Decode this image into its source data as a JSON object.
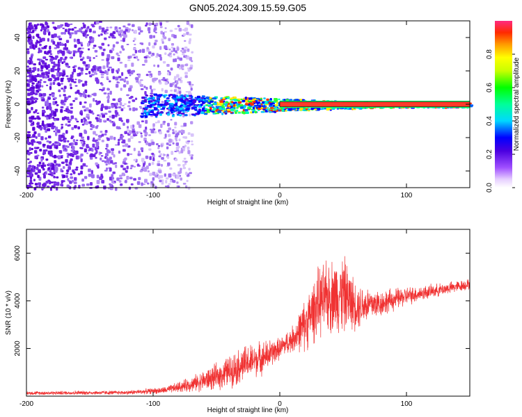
{
  "title": "GN05.2024.309.15.59.G05",
  "colors": {
    "signal": "#f03232",
    "axis": "#000000",
    "background": "#ffffff"
  },
  "chart_data": [
    {
      "type": "heatmap",
      "xlabel": "Height of straight line (km)",
      "ylabel": "Frequency (Hz)",
      "xlim": [
        -200,
        150
      ],
      "ylim": [
        -50,
        50
      ],
      "x_ticks": [
        -200,
        -100,
        0,
        100
      ],
      "y_ticks": [
        -40,
        -20,
        0,
        20,
        40
      ],
      "colorbar": {
        "label": "Normalized spectral amplitude",
        "range": [
          0,
          1
        ],
        "ticks": [
          0.0,
          0.2,
          0.4,
          0.6,
          0.8
        ],
        "colormap": "rainbow"
      },
      "features": {
        "noise_region_x": [
          -200,
          -70
        ],
        "tone_start_x": -110,
        "tone_frequency": 0,
        "tone_line_x": [
          0,
          150
        ],
        "tone_line_halfwidth": 1.5
      }
    },
    {
      "type": "line",
      "xlabel": "Height of straight line (km)",
      "ylabel": "SNR (10 * v/v)",
      "xlim": [
        -200,
        150
      ],
      "ylim": [
        0,
        7000
      ],
      "x_ticks": [
        -200,
        -100,
        0,
        100
      ],
      "y_ticks": [
        2000,
        4000,
        6000
      ],
      "trend_x": [
        -200,
        -120,
        -90,
        -70,
        -50,
        -30,
        -10,
        0,
        10,
        20,
        30,
        40,
        50,
        60,
        80,
        100,
        120,
        150
      ],
      "trend_y": [
        130,
        150,
        250,
        500,
        800,
        1300,
        1700,
        2000,
        2400,
        3000,
        3900,
        4200,
        4300,
        3800,
        3900,
        4200,
        4400,
        4700
      ],
      "spread_y": [
        70,
        80,
        130,
        280,
        500,
        700,
        600,
        400,
        500,
        1000,
        1300,
        1400,
        1500,
        900,
        500,
        350,
        250,
        200
      ]
    }
  ]
}
